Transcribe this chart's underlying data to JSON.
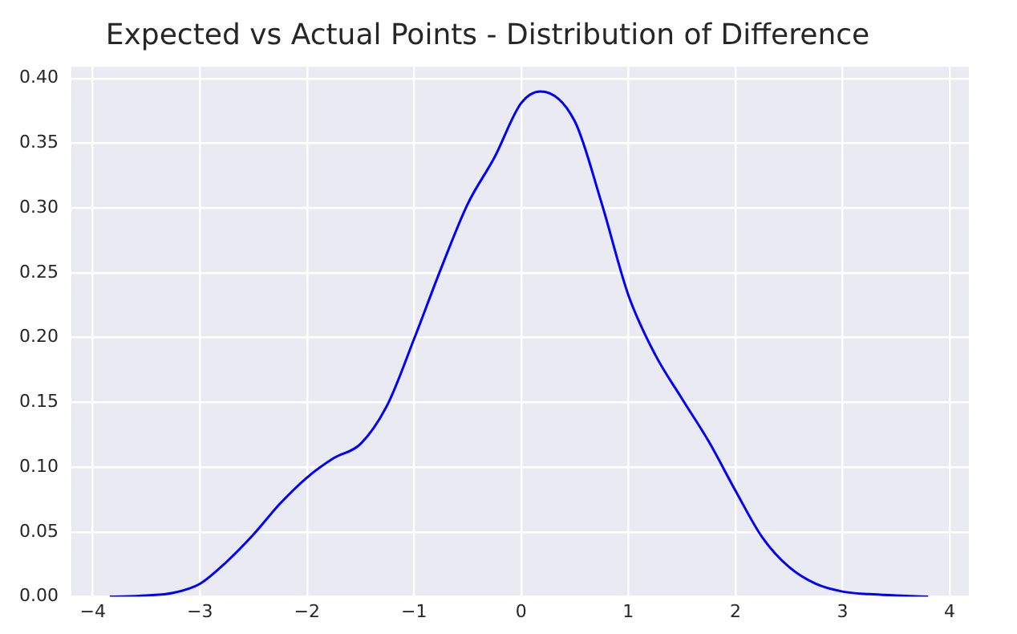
{
  "chart_data": {
    "type": "line",
    "title": "Expected vs Actual Points - Distribution of Difference",
    "xlim": [
      -4.2,
      4.18
    ],
    "xticks": [
      -4,
      -3,
      -2,
      -1,
      0,
      1,
      2,
      3,
      4
    ],
    "ylim": [
      0,
      0.409
    ],
    "yticks": [
      {
        "value": 0,
        "label": "0.00"
      },
      0.05,
      {
        "value": 0.1,
        "label": "0.10"
      },
      0.15,
      {
        "value": 0.2,
        "label": "0.20"
      },
      0.25,
      {
        "value": 0.3,
        "label": "0.30"
      },
      0.35,
      {
        "value": 0.4,
        "label": "0.40"
      }
    ],
    "grid": true,
    "marker": "none",
    "line_style": "solid",
    "series": [
      {
        "color": "#0000ff",
        "x": [
          -3.84,
          -3.5,
          -3.25,
          -3,
          -2.75,
          -2.5,
          -2.25,
          -2,
          -1.75,
          -1.5,
          -1.25,
          -1,
          -0.75,
          -0.5,
          -0.25,
          0,
          0.18,
          0.5,
          0.75,
          1,
          1.25,
          1.5,
          1.75,
          2,
          2.25,
          2.5,
          2.75,
          3,
          3.25,
          3.5,
          3.8
        ],
        "values": [
          0,
          0.001,
          0.003,
          0.01,
          0.027,
          0.048,
          0.072,
          0.092,
          0.107,
          0.118,
          0.148,
          0.199,
          0.253,
          0.303,
          0.339,
          0.381,
          0.39,
          0.367,
          0.304,
          0.233,
          0.187,
          0.153,
          0.12,
          0.082,
          0.046,
          0.023,
          0.01,
          0.004,
          0.002,
          0.001,
          0
        ]
      }
    ]
  }
}
